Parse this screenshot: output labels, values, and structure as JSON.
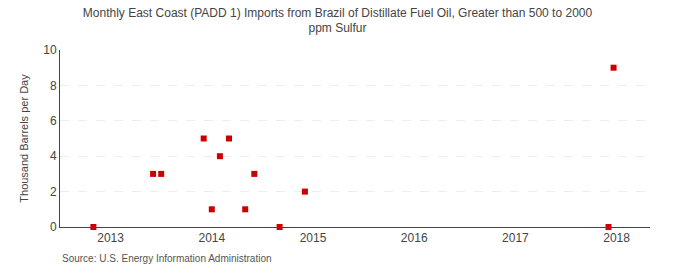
{
  "chart_data": {
    "type": "scatter",
    "title": "Monthly East Coast (PADD 1) Imports from Brazil of Distillate Fuel Oil, Greater than 500 to 2000\nppm Sulfur",
    "ylabel": "Thousand Barrels per Day",
    "annotations": [
      "Source: U.S. Energy Information Administration"
    ],
    "x": [
      2012.83,
      2013.42,
      2013.5,
      2013.92,
      2014.0,
      2014.08,
      2014.17,
      2014.33,
      2014.42,
      2014.67,
      2014.92,
      2017.92,
      2017.97
    ],
    "values": [
      0,
      3,
      3,
      5,
      1,
      4,
      5,
      1,
      3,
      0,
      2,
      0,
      9
    ],
    "color": "#cc0000",
    "marker": "square",
    "xlim": [
      2012.5,
      2018.33
    ],
    "xticks": [
      2013,
      2014,
      2015,
      2016,
      2017,
      2018
    ],
    "ylim": [
      0,
      10
    ],
    "yticks": [
      0,
      2,
      4,
      6,
      8,
      10
    ],
    "grid": "y"
  }
}
